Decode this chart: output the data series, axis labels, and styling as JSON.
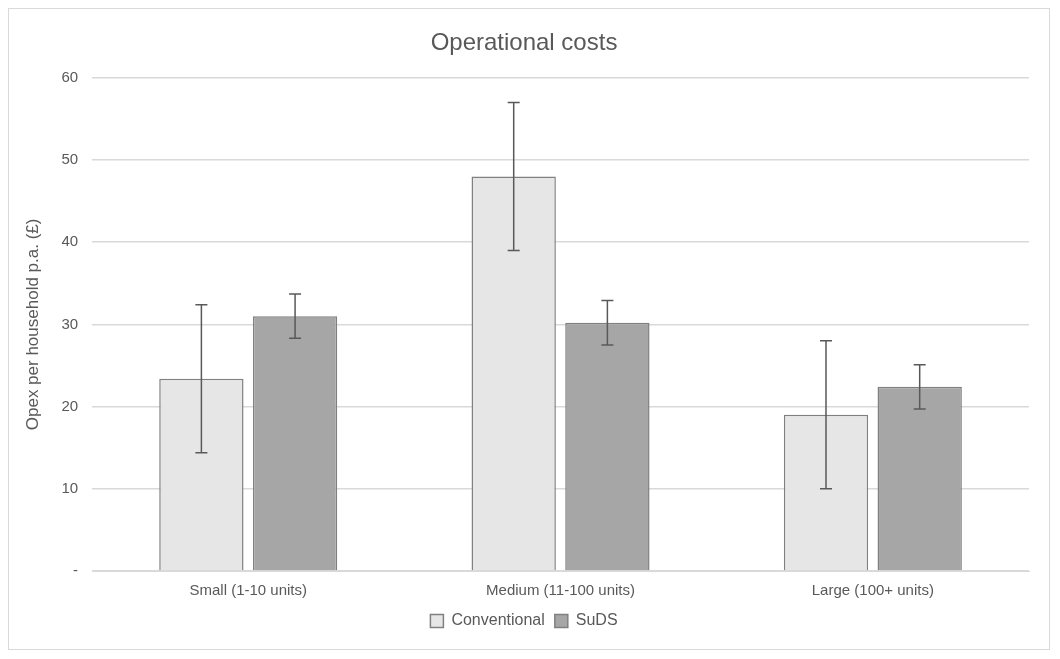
{
  "chart_data": {
    "type": "bar",
    "title": "Operational costs",
    "ylabel": "Opex per household p.a. (£)",
    "categories": [
      "Small (1-10 units)",
      "Medium (11-100 units)",
      "Large (100+ units)"
    ],
    "series": [
      {
        "name": "Conventional",
        "color": "#e6e6e6",
        "values": [
          23.4,
          48.0,
          19.0
        ],
        "errors": [
          9,
          9,
          9
        ]
      },
      {
        "name": "SuDS",
        "color": "#a6a6a6",
        "values": [
          31.0,
          30.2,
          22.4
        ],
        "errors": [
          2.7,
          2.7,
          2.7
        ]
      }
    ],
    "ylim": [
      0,
      60
    ],
    "yticks": [
      {
        "value": 0,
        "label": "-"
      },
      10,
      20,
      30,
      40,
      50,
      60
    ],
    "grid": "y",
    "legend": "bottom"
  }
}
